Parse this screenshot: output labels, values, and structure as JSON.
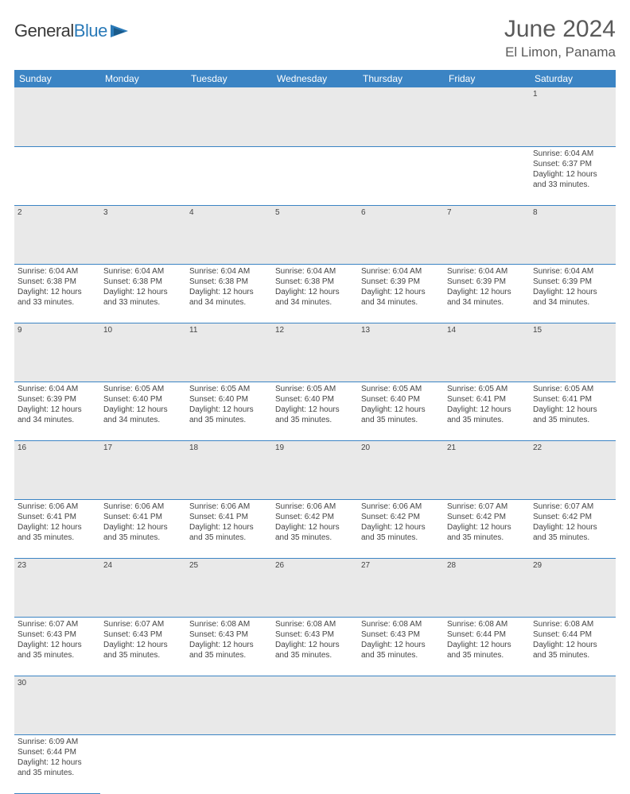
{
  "brand": {
    "part1": "General",
    "part2": "Blue"
  },
  "title": "June 2024",
  "location": "El Limon, Panama",
  "colors": {
    "header_bg": "#3b84c4",
    "header_text": "#ffffff",
    "daynum_bg": "#e9e9e9",
    "border": "#3b84c4",
    "text": "#444444"
  },
  "day_headers": [
    "Sunday",
    "Monday",
    "Tuesday",
    "Wednesday",
    "Thursday",
    "Friday",
    "Saturday"
  ],
  "weeks": [
    {
      "nums": [
        "",
        "",
        "",
        "",
        "",
        "",
        "1"
      ],
      "cells": [
        null,
        null,
        null,
        null,
        null,
        null,
        {
          "sunrise": "Sunrise: 6:04 AM",
          "sunset": "Sunset: 6:37 PM",
          "daylight": "Daylight: 12 hours and 33 minutes."
        }
      ]
    },
    {
      "nums": [
        "2",
        "3",
        "4",
        "5",
        "6",
        "7",
        "8"
      ],
      "cells": [
        {
          "sunrise": "Sunrise: 6:04 AM",
          "sunset": "Sunset: 6:38 PM",
          "daylight": "Daylight: 12 hours and 33 minutes."
        },
        {
          "sunrise": "Sunrise: 6:04 AM",
          "sunset": "Sunset: 6:38 PM",
          "daylight": "Daylight: 12 hours and 33 minutes."
        },
        {
          "sunrise": "Sunrise: 6:04 AM",
          "sunset": "Sunset: 6:38 PM",
          "daylight": "Daylight: 12 hours and 34 minutes."
        },
        {
          "sunrise": "Sunrise: 6:04 AM",
          "sunset": "Sunset: 6:38 PM",
          "daylight": "Daylight: 12 hours and 34 minutes."
        },
        {
          "sunrise": "Sunrise: 6:04 AM",
          "sunset": "Sunset: 6:39 PM",
          "daylight": "Daylight: 12 hours and 34 minutes."
        },
        {
          "sunrise": "Sunrise: 6:04 AM",
          "sunset": "Sunset: 6:39 PM",
          "daylight": "Daylight: 12 hours and 34 minutes."
        },
        {
          "sunrise": "Sunrise: 6:04 AM",
          "sunset": "Sunset: 6:39 PM",
          "daylight": "Daylight: 12 hours and 34 minutes."
        }
      ]
    },
    {
      "nums": [
        "9",
        "10",
        "11",
        "12",
        "13",
        "14",
        "15"
      ],
      "cells": [
        {
          "sunrise": "Sunrise: 6:04 AM",
          "sunset": "Sunset: 6:39 PM",
          "daylight": "Daylight: 12 hours and 34 minutes."
        },
        {
          "sunrise": "Sunrise: 6:05 AM",
          "sunset": "Sunset: 6:40 PM",
          "daylight": "Daylight: 12 hours and 34 minutes."
        },
        {
          "sunrise": "Sunrise: 6:05 AM",
          "sunset": "Sunset: 6:40 PM",
          "daylight": "Daylight: 12 hours and 35 minutes."
        },
        {
          "sunrise": "Sunrise: 6:05 AM",
          "sunset": "Sunset: 6:40 PM",
          "daylight": "Daylight: 12 hours and 35 minutes."
        },
        {
          "sunrise": "Sunrise: 6:05 AM",
          "sunset": "Sunset: 6:40 PM",
          "daylight": "Daylight: 12 hours and 35 minutes."
        },
        {
          "sunrise": "Sunrise: 6:05 AM",
          "sunset": "Sunset: 6:41 PM",
          "daylight": "Daylight: 12 hours and 35 minutes."
        },
        {
          "sunrise": "Sunrise: 6:05 AM",
          "sunset": "Sunset: 6:41 PM",
          "daylight": "Daylight: 12 hours and 35 minutes."
        }
      ]
    },
    {
      "nums": [
        "16",
        "17",
        "18",
        "19",
        "20",
        "21",
        "22"
      ],
      "cells": [
        {
          "sunrise": "Sunrise: 6:06 AM",
          "sunset": "Sunset: 6:41 PM",
          "daylight": "Daylight: 12 hours and 35 minutes."
        },
        {
          "sunrise": "Sunrise: 6:06 AM",
          "sunset": "Sunset: 6:41 PM",
          "daylight": "Daylight: 12 hours and 35 minutes."
        },
        {
          "sunrise": "Sunrise: 6:06 AM",
          "sunset": "Sunset: 6:41 PM",
          "daylight": "Daylight: 12 hours and 35 minutes."
        },
        {
          "sunrise": "Sunrise: 6:06 AM",
          "sunset": "Sunset: 6:42 PM",
          "daylight": "Daylight: 12 hours and 35 minutes."
        },
        {
          "sunrise": "Sunrise: 6:06 AM",
          "sunset": "Sunset: 6:42 PM",
          "daylight": "Daylight: 12 hours and 35 minutes."
        },
        {
          "sunrise": "Sunrise: 6:07 AM",
          "sunset": "Sunset: 6:42 PM",
          "daylight": "Daylight: 12 hours and 35 minutes."
        },
        {
          "sunrise": "Sunrise: 6:07 AM",
          "sunset": "Sunset: 6:42 PM",
          "daylight": "Daylight: 12 hours and 35 minutes."
        }
      ]
    },
    {
      "nums": [
        "23",
        "24",
        "25",
        "26",
        "27",
        "28",
        "29"
      ],
      "cells": [
        {
          "sunrise": "Sunrise: 6:07 AM",
          "sunset": "Sunset: 6:43 PM",
          "daylight": "Daylight: 12 hours and 35 minutes."
        },
        {
          "sunrise": "Sunrise: 6:07 AM",
          "sunset": "Sunset: 6:43 PM",
          "daylight": "Daylight: 12 hours and 35 minutes."
        },
        {
          "sunrise": "Sunrise: 6:08 AM",
          "sunset": "Sunset: 6:43 PM",
          "daylight": "Daylight: 12 hours and 35 minutes."
        },
        {
          "sunrise": "Sunrise: 6:08 AM",
          "sunset": "Sunset: 6:43 PM",
          "daylight": "Daylight: 12 hours and 35 minutes."
        },
        {
          "sunrise": "Sunrise: 6:08 AM",
          "sunset": "Sunset: 6:43 PM",
          "daylight": "Daylight: 12 hours and 35 minutes."
        },
        {
          "sunrise": "Sunrise: 6:08 AM",
          "sunset": "Sunset: 6:44 PM",
          "daylight": "Daylight: 12 hours and 35 minutes."
        },
        {
          "sunrise": "Sunrise: 6:08 AM",
          "sunset": "Sunset: 6:44 PM",
          "daylight": "Daylight: 12 hours and 35 minutes."
        }
      ]
    },
    {
      "nums": [
        "30",
        "",
        "",
        "",
        "",
        "",
        ""
      ],
      "cells": [
        {
          "sunrise": "Sunrise: 6:09 AM",
          "sunset": "Sunset: 6:44 PM",
          "daylight": "Daylight: 12 hours and 35 minutes."
        },
        null,
        null,
        null,
        null,
        null,
        null
      ]
    }
  ]
}
